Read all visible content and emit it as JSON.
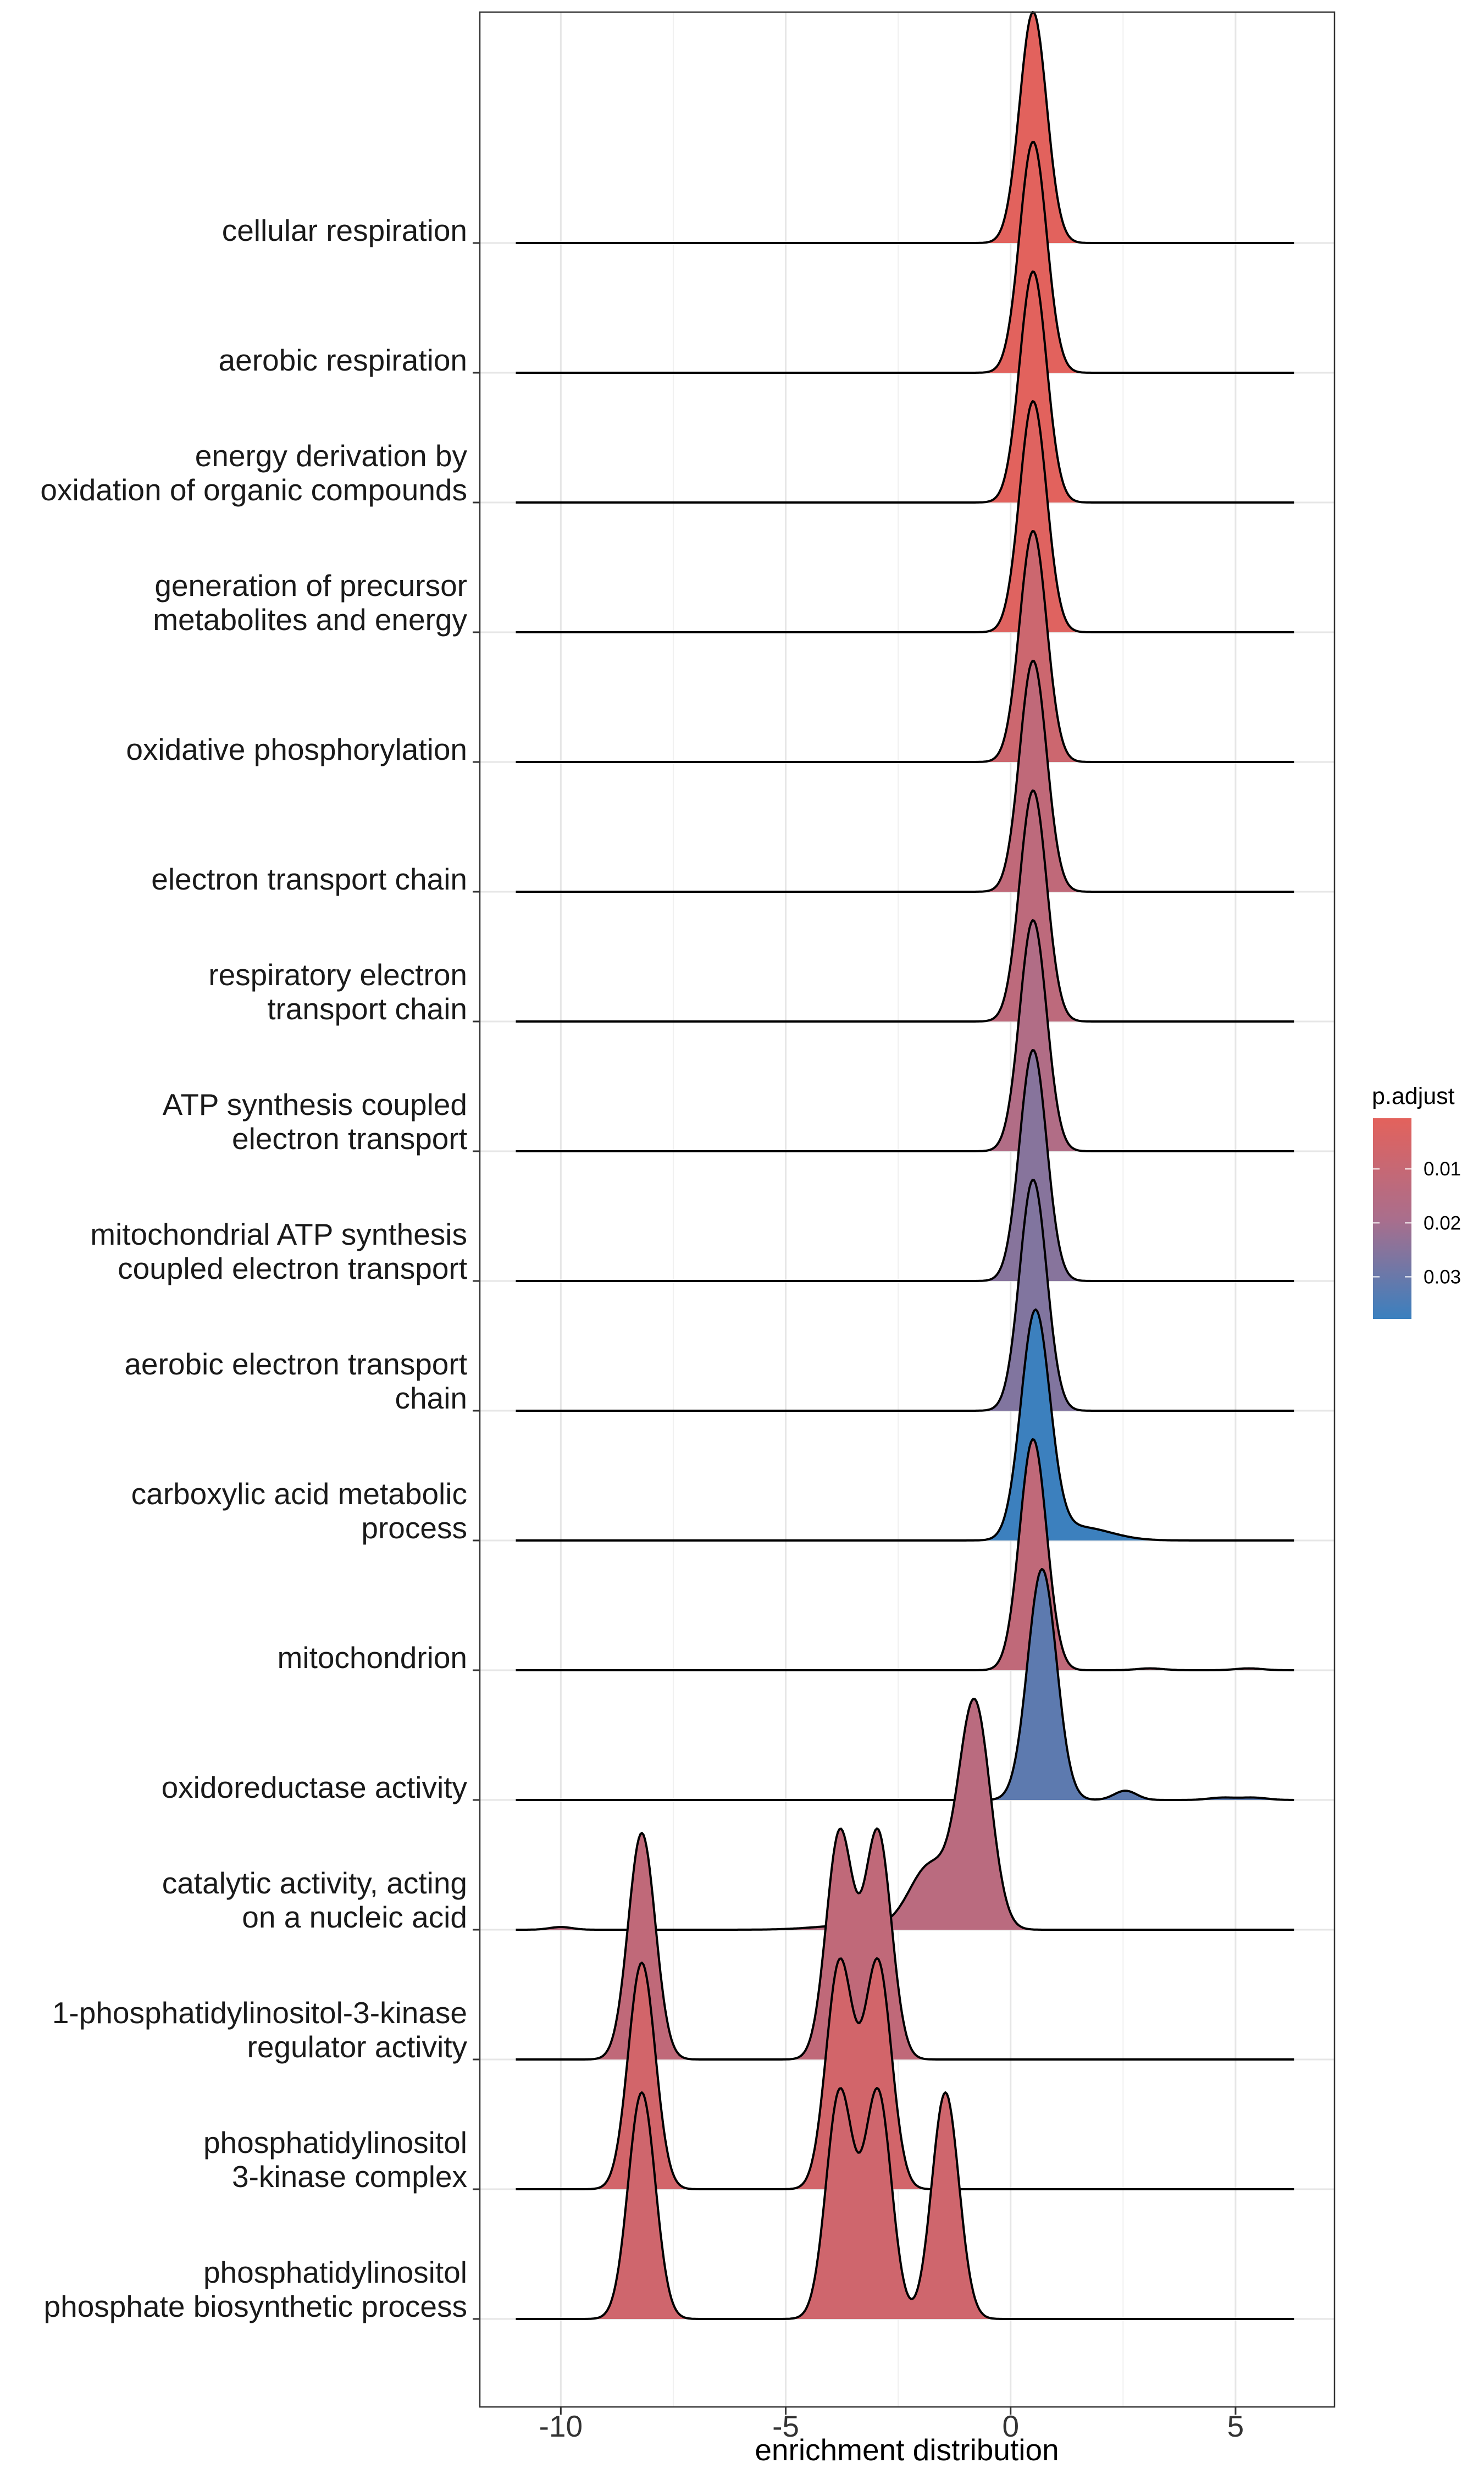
{
  "chart_data": {
    "type": "ridgeline",
    "xlabel": "enrichment distribution",
    "ylabel": "",
    "xlim": [
      -11.8,
      7.2
    ],
    "x_ticks": [
      -10,
      -5,
      0,
      5
    ],
    "x_tick_labels": [
      "-10",
      "-5",
      "0",
      "5"
    ],
    "density_range": [
      -11,
      6.3
    ],
    "grid": true,
    "legend": {
      "title": "p.adjust",
      "position": "right",
      "range": [
        0.0006,
        0.0378
      ],
      "ticks": [
        0.01,
        0.02,
        0.03
      ],
      "tick_labels": [
        "0.01",
        "0.02",
        "0.03"
      ],
      "color_low": "#E3625C",
      "color_high": "#3A80BF"
    },
    "series": [
      {
        "label_lines": [
          "cellular respiration"
        ],
        "p_adjust": 0.0008,
        "components": [
          {
            "mu": 0.5,
            "sd": 0.3,
            "w": 1.0
          }
        ]
      },
      {
        "label_lines": [
          "aerobic respiration"
        ],
        "p_adjust": 0.0009,
        "components": [
          {
            "mu": 0.5,
            "sd": 0.3,
            "w": 1.0
          }
        ]
      },
      {
        "label_lines": [
          "energy derivation by",
          "oxidation of organic compounds"
        ],
        "p_adjust": 0.001,
        "components": [
          {
            "mu": 0.5,
            "sd": 0.3,
            "w": 1.0
          }
        ]
      },
      {
        "label_lines": [
          "generation of precursor",
          "metabolites and energy"
        ],
        "p_adjust": 0.002,
        "components": [
          {
            "mu": 0.5,
            "sd": 0.3,
            "w": 1.0
          }
        ]
      },
      {
        "label_lines": [
          "oxidative phosphorylation"
        ],
        "p_adjust": 0.008,
        "components": [
          {
            "mu": 0.5,
            "sd": 0.3,
            "w": 1.0
          }
        ]
      },
      {
        "label_lines": [
          "electron transport chain"
        ],
        "p_adjust": 0.012,
        "components": [
          {
            "mu": 0.5,
            "sd": 0.3,
            "w": 1.0
          }
        ]
      },
      {
        "label_lines": [
          "respiratory electron",
          "transport chain"
        ],
        "p_adjust": 0.013,
        "components": [
          {
            "mu": 0.5,
            "sd": 0.3,
            "w": 1.0
          }
        ]
      },
      {
        "label_lines": [
          "ATP synthesis coupled",
          "electron transport"
        ],
        "p_adjust": 0.017,
        "components": [
          {
            "mu": 0.5,
            "sd": 0.3,
            "w": 1.0
          }
        ]
      },
      {
        "label_lines": [
          "mitochondrial ATP synthesis",
          "coupled electron transport"
        ],
        "p_adjust": 0.025,
        "components": [
          {
            "mu": 0.5,
            "sd": 0.3,
            "w": 1.0
          }
        ]
      },
      {
        "label_lines": [
          "aerobic electron transport",
          "chain"
        ],
        "p_adjust": 0.026,
        "components": [
          {
            "mu": 0.5,
            "sd": 0.3,
            "w": 1.0
          }
        ]
      },
      {
        "label_lines": [
          "carboxylic acid metabolic",
          "process"
        ],
        "p_adjust": 0.0375,
        "components": [
          {
            "mu": 0.55,
            "sd": 0.32,
            "w": 1.0
          },
          {
            "mu": 1.5,
            "sd": 0.7,
            "w": 0.06
          }
        ]
      },
      {
        "label_lines": [
          "mitochondrion"
        ],
        "p_adjust": 0.012,
        "components": [
          {
            "mu": 0.5,
            "sd": 0.3,
            "w": 1.0
          },
          {
            "mu": 3.1,
            "sd": 0.3,
            "w": 0.008
          },
          {
            "mu": 5.3,
            "sd": 0.3,
            "w": 0.008
          }
        ]
      },
      {
        "label_lines": [
          "oxidoreductase activity"
        ],
        "p_adjust": 0.032,
        "components": [
          {
            "mu": 0.7,
            "sd": 0.32,
            "w": 1.0
          },
          {
            "mu": 2.55,
            "sd": 0.25,
            "w": 0.04
          },
          {
            "mu": 4.7,
            "sd": 0.3,
            "w": 0.01
          },
          {
            "mu": 5.4,
            "sd": 0.3,
            "w": 0.01
          }
        ]
      },
      {
        "label_lines": [
          "catalytic activity, acting",
          "on a nucleic acid"
        ],
        "p_adjust": 0.014,
        "components": [
          {
            "mu": -0.8,
            "sd": 0.35,
            "w": 1.0
          },
          {
            "mu": -1.8,
            "sd": 0.45,
            "w": 0.28
          },
          {
            "mu": -3.5,
            "sd": 0.8,
            "w": 0.02
          },
          {
            "mu": -10.0,
            "sd": 0.25,
            "w": 0.012
          }
        ]
      },
      {
        "label_lines": [
          "1-phosphatidylinositol-3-kinase",
          "regulator activity"
        ],
        "p_adjust": 0.012,
        "components": [
          {
            "mu": -8.2,
            "sd": 0.3,
            "w": 1.0
          },
          {
            "mu": -3.8,
            "sd": 0.3,
            "w": 1.0
          },
          {
            "mu": -2.95,
            "sd": 0.3,
            "w": 1.0
          }
        ]
      },
      {
        "label_lines": [
          "phosphatidylinositol",
          "3-kinase complex"
        ],
        "p_adjust": 0.006,
        "components": [
          {
            "mu": -8.2,
            "sd": 0.3,
            "w": 1.0
          },
          {
            "mu": -3.8,
            "sd": 0.3,
            "w": 1.0
          },
          {
            "mu": -2.95,
            "sd": 0.3,
            "w": 1.0
          }
        ]
      },
      {
        "label_lines": [
          "phosphatidylinositol",
          "phosphate biosynthetic process"
        ],
        "p_adjust": 0.007,
        "components": [
          {
            "mu": -8.2,
            "sd": 0.3,
            "w": 1.0
          },
          {
            "mu": -3.8,
            "sd": 0.3,
            "w": 1.0
          },
          {
            "mu": -2.95,
            "sd": 0.3,
            "w": 1.0
          },
          {
            "mu": -1.45,
            "sd": 0.3,
            "w": 1.0
          }
        ]
      }
    ]
  }
}
